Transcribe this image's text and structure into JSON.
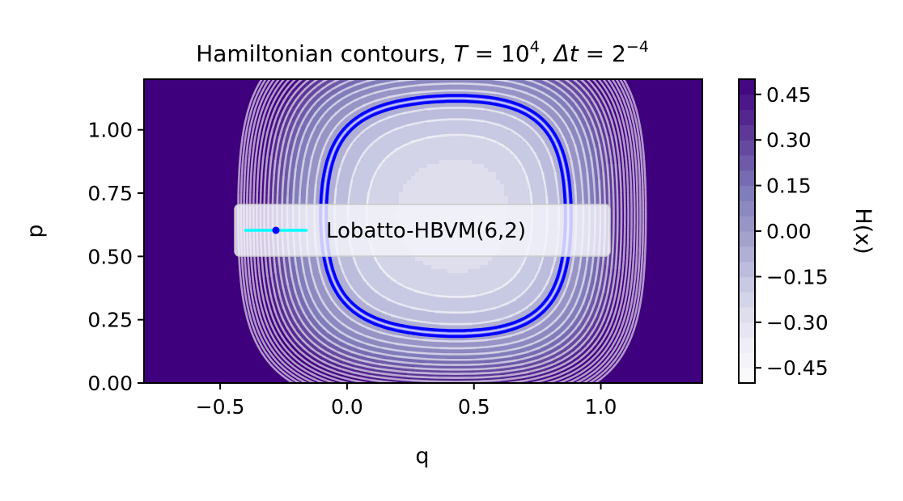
{
  "chart_data": {
    "type": "contour",
    "title": {
      "prefix": "Hamiltonian contours, ",
      "T_symbol": "T",
      "T_value_base": "10",
      "T_value_exp": "4",
      "dt_symbol": "Δt",
      "dt_value_base": "2",
      "dt_value_exp": "−4",
      "equals": " = ",
      "separator": ", "
    },
    "xlabel": "q",
    "ylabel": "p",
    "colorbar_label": "H(x)",
    "xlim": [
      -0.8,
      1.4
    ],
    "ylim": [
      0.0,
      1.2
    ],
    "x_ticks": [
      {
        "value": -0.5,
        "label": "−0.5"
      },
      {
        "value": 0.0,
        "label": "0.0"
      },
      {
        "value": 0.5,
        "label": "0.5"
      },
      {
        "value": 1.0,
        "label": "1.0"
      }
    ],
    "y_ticks": [
      {
        "value": 0.0,
        "label": "0.00"
      },
      {
        "value": 0.25,
        "label": "0.25"
      },
      {
        "value": 0.5,
        "label": "0.50"
      },
      {
        "value": 0.75,
        "label": "0.75"
      },
      {
        "value": 1.0,
        "label": "1.00"
      }
    ],
    "colorbar_range": [
      -0.5,
      0.5
    ],
    "colorbar_ticks": [
      {
        "value": 0.45,
        "label": "0.45"
      },
      {
        "value": 0.3,
        "label": "0.30"
      },
      {
        "value": 0.15,
        "label": "0.15"
      },
      {
        "value": 0.0,
        "label": "0.00"
      },
      {
        "value": -0.15,
        "label": "−0.15"
      },
      {
        "value": -0.3,
        "label": "−0.30"
      },
      {
        "value": -0.45,
        "label": "−0.45"
      }
    ],
    "colormap": [
      "#fcfbfd",
      "#efedf5",
      "#dadaeb",
      "#bcbddc",
      "#9e9ac8",
      "#807dba",
      "#6a51a3",
      "#54278f",
      "#3f007d"
    ],
    "contour_line_color": "#ffffff",
    "trajectory_color": "#0000ff",
    "legend": {
      "placement": "center-left",
      "entries": [
        {
          "label": "Lobatto-HBVM(6,2)",
          "line_color": "#00ffff",
          "marker_color": "#0000ff"
        }
      ]
    },
    "grid": false
  }
}
